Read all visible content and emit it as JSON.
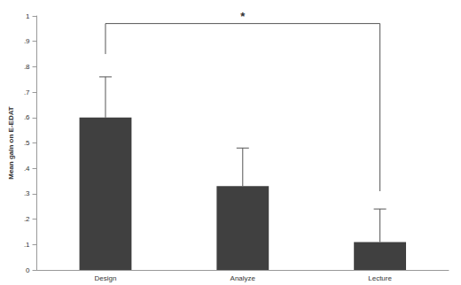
{
  "chart_data": {
    "type": "bar",
    "y_label": "Mean gain on E-EDAT",
    "categories": [
      "Design",
      "Analyze",
      "Lecture"
    ],
    "values": [
      0.6,
      0.33,
      0.11
    ],
    "errors": [
      0.16,
      0.15,
      0.13
    ],
    "color": "#404040",
    "ylim": [
      0,
      1
    ],
    "yticks": [
      0,
      {
        "value": 0.1,
        "label": ".1"
      },
      {
        "value": 0.2,
        "label": ".2"
      },
      {
        "value": 0.3,
        "label": ".3"
      },
      {
        "value": 0.4,
        "label": ".4"
      },
      {
        "value": 0.5,
        "label": ".5"
      },
      {
        "value": 0.6,
        "label": ".6"
      },
      {
        "value": 0.7,
        "label": ".7"
      },
      {
        "value": 0.8,
        "label": ".8"
      },
      {
        "value": 0.9,
        "label": ".9"
      },
      1
    ],
    "grid": false,
    "annotations": [
      {
        "text": "*",
        "from": "Design",
        "to": "Lecture",
        "y": 0.97,
        "from_y": 0.85,
        "to_y": 0.31
      }
    ]
  }
}
